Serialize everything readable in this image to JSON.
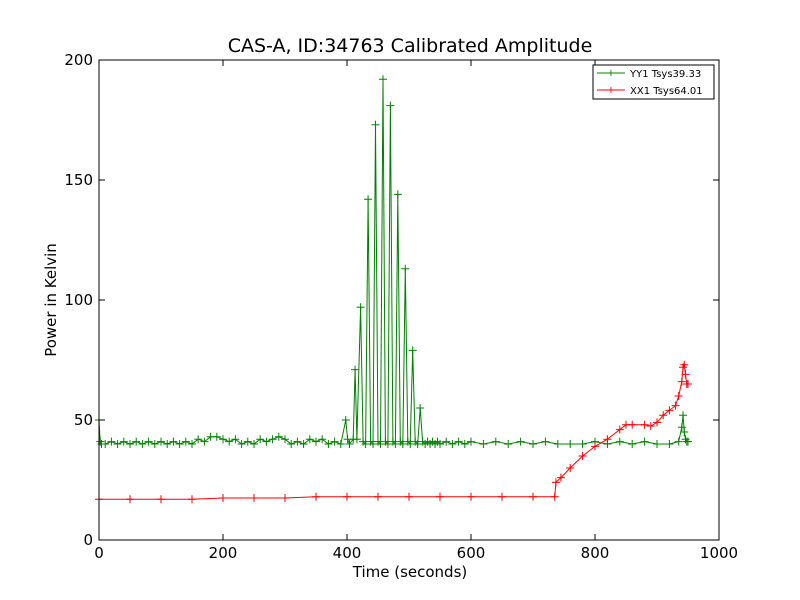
{
  "chart_data": {
    "type": "line",
    "title": "CAS-A, ID:34763 Calibrated Amplitude",
    "xlabel": "Time (seconds)",
    "ylabel": "Power in Kelvin",
    "xlim": [
      0,
      1000
    ],
    "ylim": [
      0,
      200
    ],
    "xticks": [
      0,
      200,
      400,
      600,
      800,
      1000
    ],
    "yticks": [
      0,
      50,
      100,
      150,
      200
    ],
    "grid": false,
    "legend_position": "top-right",
    "marker": "+",
    "series": [
      {
        "name": "YY1 Tsys39.33",
        "color": "#008000",
        "x": [
          0,
          2,
          4,
          10,
          20,
          30,
          40,
          50,
          60,
          70,
          80,
          90,
          100,
          110,
          120,
          130,
          140,
          150,
          160,
          170,
          180,
          190,
          200,
          210,
          220,
          230,
          240,
          250,
          260,
          270,
          280,
          290,
          300,
          310,
          320,
          330,
          340,
          350,
          360,
          370,
          380,
          390,
          398,
          401,
          404,
          410,
          413,
          416,
          422,
          426,
          430,
          434,
          438,
          442,
          446,
          450,
          454,
          458,
          462,
          466,
          470,
          474,
          478,
          482,
          486,
          490,
          494,
          498,
          502,
          506,
          510,
          514,
          518,
          522,
          526,
          530,
          534,
          538,
          542,
          546,
          550,
          560,
          570,
          580,
          590,
          600,
          620,
          640,
          660,
          680,
          700,
          720,
          740,
          760,
          780,
          800,
          820,
          840,
          860,
          880,
          900,
          920,
          935,
          940,
          942,
          944,
          946,
          948,
          950
        ],
        "y": [
          50,
          41,
          40,
          40,
          41,
          40,
          41,
          40,
          41,
          40,
          41,
          40,
          41,
          40,
          41,
          40,
          41,
          40,
          42,
          41,
          43,
          43,
          42,
          41,
          42,
          40,
          41,
          40,
          42,
          41,
          42,
          43,
          42,
          40,
          41,
          40,
          42,
          41,
          42,
          40,
          41,
          40,
          50,
          42,
          40,
          42,
          71,
          42,
          97,
          41,
          40,
          142,
          41,
          40,
          173,
          41,
          40,
          192,
          41,
          40,
          181,
          41,
          40,
          144,
          41,
          40,
          113,
          41,
          40,
          79,
          41,
          40,
          55,
          41,
          40,
          41,
          40,
          41,
          40,
          41,
          40,
          41,
          40,
          41,
          40,
          41,
          40,
          41,
          40,
          41,
          40,
          41,
          40,
          40,
          40,
          41,
          40,
          41,
          40,
          41,
          40,
          40,
          41,
          47,
          52,
          45,
          42,
          41,
          41
        ]
      },
      {
        "name": "XX1 Tsys64.01",
        "color": "#ff0000",
        "x": [
          0,
          50,
          100,
          150,
          200,
          250,
          300,
          350,
          400,
          450,
          500,
          550,
          600,
          650,
          700,
          735,
          737,
          745,
          760,
          780,
          800,
          820,
          840,
          850,
          860,
          880,
          890,
          900,
          910,
          920,
          930,
          935,
          940,
          942,
          944,
          946,
          948,
          950
        ],
        "y": [
          17,
          17,
          17,
          17,
          17.5,
          17.5,
          17.5,
          18,
          18,
          18,
          18,
          18,
          18,
          18,
          18,
          18,
          24,
          26,
          30,
          35,
          39,
          42,
          46,
          48,
          48,
          48,
          47.5,
          49,
          52,
          54,
          56,
          60,
          66,
          72,
          73,
          69,
          65,
          65
        ]
      }
    ]
  }
}
